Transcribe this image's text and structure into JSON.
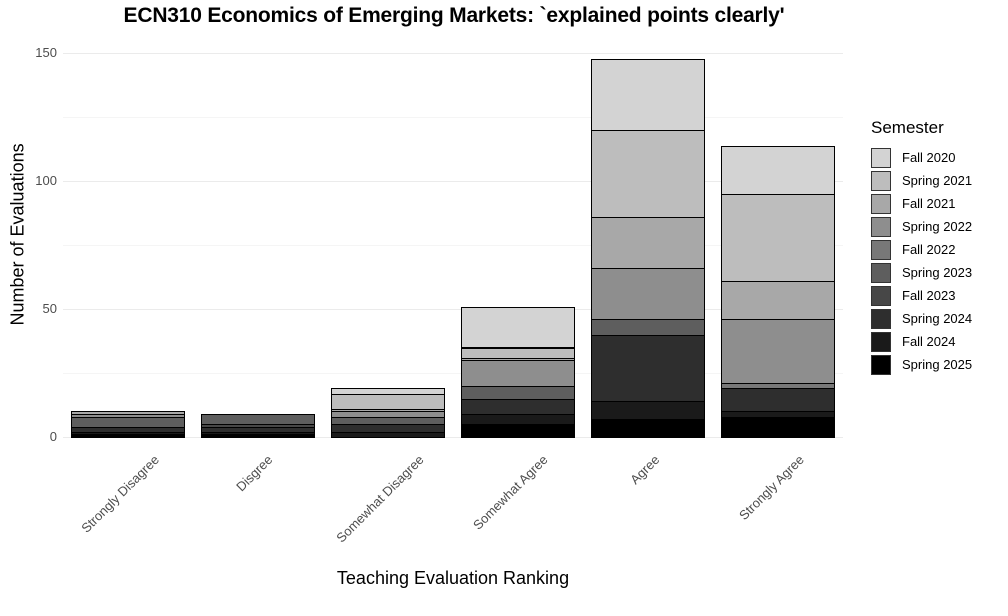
{
  "chart_data": {
    "type": "bar",
    "stacked": true,
    "title": "ECN310 Economics of Emerging Markets: `explained points clearly'",
    "xlabel": "Teaching Evaluation Ranking",
    "ylabel": "Number of Evaluations",
    "ylim": [
      0,
      155
    ],
    "yticks": [
      0,
      50,
      100,
      150
    ],
    "grid": true,
    "legend_title": "Semester",
    "legend_position": "right",
    "categories": [
      "Strongly Disagree",
      "Disgree",
      "Somewhat Disagree",
      "Somewhat Agree",
      "Agree",
      "Strongly Agree"
    ],
    "series": [
      {
        "name": "Fall 2020",
        "color": "#d3d3d3",
        "values": [
          0,
          0,
          2,
          16,
          28,
          19
        ]
      },
      {
        "name": "Spring 2021",
        "color": "#bdbdbd",
        "values": [
          0,
          0,
          6,
          4,
          34,
          34
        ]
      },
      {
        "name": "Fall 2021",
        "color": "#a8a8a8",
        "values": [
          1,
          0,
          1,
          1,
          20,
          15
        ]
      },
      {
        "name": "Spring 2022",
        "color": "#8e8e8e",
        "values": [
          1,
          0,
          2,
          10,
          20,
          25
        ]
      },
      {
        "name": "Fall 2022",
        "color": "#787878",
        "values": [
          0,
          0,
          0,
          0,
          0,
          2
        ]
      },
      {
        "name": "Spring 2023",
        "color": "#5e5e5e",
        "values": [
          4,
          4,
          3,
          5,
          6,
          0
        ]
      },
      {
        "name": "Fall 2023",
        "color": "#474747",
        "values": [
          0,
          1,
          0,
          0,
          0,
          0
        ]
      },
      {
        "name": "Spring 2024",
        "color": "#2e2e2e",
        "values": [
          2,
          2,
          3,
          6,
          26,
          9
        ]
      },
      {
        "name": "Fall 2024",
        "color": "#1a1a1a",
        "values": [
          1,
          1,
          2,
          4,
          7,
          2
        ]
      },
      {
        "name": "Spring 2025",
        "color": "#000000",
        "values": [
          1,
          1,
          0,
          5,
          7,
          8
        ]
      }
    ],
    "totals": [
      10,
      9,
      19,
      51,
      148,
      114
    ]
  }
}
